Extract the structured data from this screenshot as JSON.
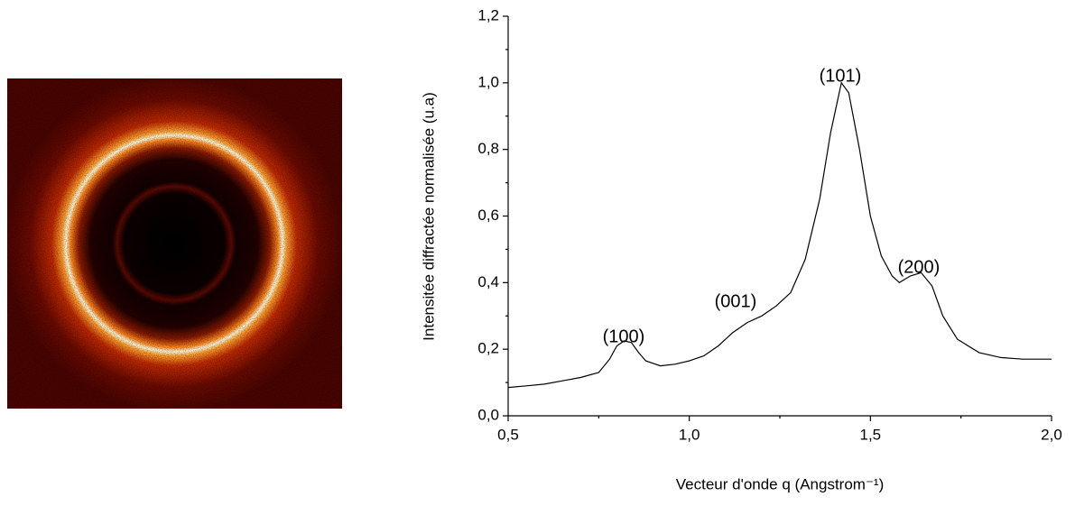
{
  "chart_data": {
    "type": "line",
    "x_label": "Vecteur d'onde q (Angstrom⁻¹)",
    "y_label": "Intensitée diffractée normalisée (u.a)",
    "xlim": [
      0.5,
      2.0
    ],
    "xticks": [
      {
        "value": 0.5,
        "label": "0,5"
      },
      {
        "value": 1.0,
        "label": "1,0"
      },
      {
        "value": 1.5,
        "label": "1,5"
      },
      {
        "value": 2.0,
        "label": "2,0"
      }
    ],
    "ylim": [
      0,
      1.2
    ],
    "yticks": [
      {
        "value": 0,
        "label": "0,0"
      },
      {
        "value": 0.2,
        "label": "0,2"
      },
      {
        "value": 0.4,
        "label": "0,4"
      },
      {
        "value": 0.6,
        "label": "0,6"
      },
      {
        "value": 0.8,
        "label": "0,8"
      },
      {
        "value": 1.0,
        "label": "1,0"
      },
      {
        "value": 1.2,
        "label": "1,2"
      }
    ],
    "annotations": [
      "(100)",
      "(001)",
      "(101)",
      "(200)"
    ],
    "series": [
      {
        "color": "#000000",
        "x": [
          0.5,
          0.55,
          0.6,
          0.65,
          0.7,
          0.75,
          0.78,
          0.8,
          0.82,
          0.84,
          0.86,
          0.88,
          0.92,
          0.96,
          1.0,
          1.04,
          1.08,
          1.12,
          1.16,
          1.2,
          1.24,
          1.28,
          1.32,
          1.36,
          1.39,
          1.42,
          1.44,
          1.47,
          1.5,
          1.53,
          1.56,
          1.58,
          1.61,
          1.64,
          1.67,
          1.7,
          1.74,
          1.8,
          1.86,
          1.92,
          2.0
        ],
        "values": [
          0.085,
          0.09,
          0.095,
          0.105,
          0.115,
          0.13,
          0.17,
          0.21,
          0.225,
          0.22,
          0.19,
          0.165,
          0.15,
          0.155,
          0.165,
          0.18,
          0.21,
          0.25,
          0.28,
          0.3,
          0.33,
          0.37,
          0.47,
          0.65,
          0.85,
          1.0,
          0.97,
          0.8,
          0.6,
          0.48,
          0.42,
          0.4,
          0.42,
          0.43,
          0.39,
          0.3,
          0.23,
          0.19,
          0.175,
          0.17,
          0.17
        ]
      }
    ]
  }
}
